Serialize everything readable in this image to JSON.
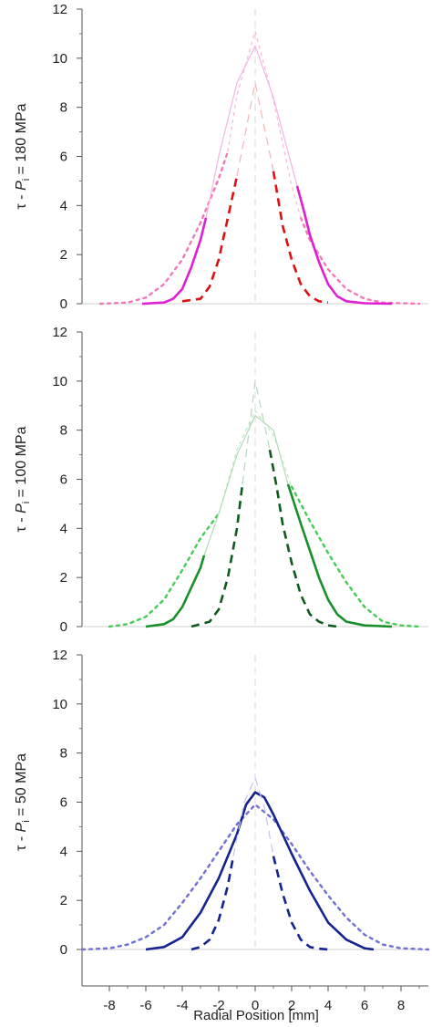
{
  "figure": {
    "xlabel": "Radial Position [mm]"
  },
  "chart_data": [
    {
      "type": "line",
      "title": "",
      "ylabel": "τ - Pᵢ = 180 MPa",
      "ylabel_parts": {
        "pre": "τ - ",
        "var": "P",
        "sub": "i",
        "post": " = 180 MPa"
      },
      "xlim": [
        -9.5,
        9.5
      ],
      "ylim": [
        0,
        12
      ],
      "yticks": [
        0,
        2,
        4,
        6,
        8,
        10,
        12
      ],
      "grid": false,
      "series": [
        {
          "style": "dotted",
          "color": "#f07ab8",
          "x": [
            -8.5,
            -7,
            -6,
            -5,
            -4,
            -3,
            -2,
            -1.5
          ],
          "y": [
            0,
            0.05,
            0.25,
            0.8,
            1.8,
            3.3,
            5.1,
            6.2
          ]
        },
        {
          "style": "dotted",
          "color": "#f07ab8",
          "x": [
            2.5,
            3,
            4,
            5,
            6,
            7,
            8,
            9
          ],
          "y": [
            3.5,
            2.6,
            1.4,
            0.6,
            0.2,
            0.05,
            0.02,
            0
          ]
        },
        {
          "style": "dotted",
          "color": "#f4b9d8",
          "x": [
            -1.5,
            -1,
            0,
            1,
            2,
            2.5
          ],
          "y": [
            6.2,
            8.5,
            11.1,
            8.3,
            4.8,
            3.5
          ]
        },
        {
          "style": "solid",
          "color": "#e020d0",
          "x": [
            -6.2,
            -5,
            -4.5,
            -4,
            -3.5,
            -3,
            -2.7
          ],
          "y": [
            0,
            0.05,
            0.2,
            0.6,
            1.5,
            2.6,
            3.5
          ]
        },
        {
          "style": "solid",
          "color": "#e020d0",
          "x": [
            2.3,
            2.7,
            3,
            3.5,
            4,
            4.5,
            5,
            6,
            7.5
          ],
          "y": [
            4.8,
            3.7,
            2.8,
            1.7,
            0.8,
            0.3,
            0.1,
            0.02,
            0
          ]
        },
        {
          "style": "solid",
          "color": "#f3b6e4",
          "x": [
            -2.7,
            -2,
            -1,
            0,
            1,
            2.3
          ],
          "y": [
            3.5,
            6,
            9,
            10.5,
            8.4,
            4.8
          ]
        },
        {
          "style": "dashed",
          "color": "#dd1111",
          "x": [
            -4,
            -3,
            -2.5,
            -2,
            -1.5,
            -1
          ],
          "y": [
            0.1,
            0.2,
            0.7,
            1.8,
            3.5,
            5.2
          ]
        },
        {
          "style": "dashed",
          "color": "#dd1111",
          "x": [
            1,
            1.5,
            2,
            2.5,
            3,
            3.5,
            4
          ],
          "y": [
            5.4,
            3.2,
            1.8,
            0.8,
            0.3,
            0.1,
            0.05
          ]
        },
        {
          "style": "dashed",
          "color": "#f2b8b8",
          "x": [
            -1,
            0,
            1
          ],
          "y": [
            5.2,
            9,
            5.4
          ]
        }
      ]
    },
    {
      "type": "line",
      "title": "",
      "ylabel": "τ - Pᵢ = 100 MPa",
      "ylabel_parts": {
        "pre": "τ - ",
        "var": "P",
        "sub": "i",
        "post": " = 100 MPa"
      },
      "xlim": [
        -9.5,
        9.5
      ],
      "ylim": [
        0,
        12
      ],
      "yticks": [
        0,
        2,
        4,
        6,
        8,
        10,
        12
      ],
      "grid": false,
      "series": [
        {
          "style": "dotted",
          "color": "#44cc55",
          "x": [
            -8,
            -7,
            -6,
            -5,
            -4,
            -3,
            -2
          ],
          "y": [
            0,
            0.1,
            0.4,
            1.1,
            2.3,
            3.6,
            4.6
          ]
        },
        {
          "style": "dotted",
          "color": "#44cc55",
          "x": [
            2,
            2.5,
            3,
            4,
            5,
            6,
            7,
            8,
            9
          ],
          "y": [
            5.7,
            5,
            4.3,
            3,
            1.8,
            0.8,
            0.2,
            0.05,
            0
          ]
        },
        {
          "style": "dotted",
          "color": "#b9e8c0",
          "x": [
            -2,
            -1,
            0,
            1,
            2
          ],
          "y": [
            4.6,
            7.2,
            8.8,
            7.8,
            5.7
          ]
        },
        {
          "style": "solid",
          "color": "#17902a",
          "x": [
            -6,
            -5,
            -4.5,
            -4,
            -3.5,
            -3,
            -2.8
          ],
          "y": [
            0,
            0.1,
            0.3,
            0.8,
            1.6,
            2.4,
            2.9
          ]
        },
        {
          "style": "solid",
          "color": "#17902a",
          "x": [
            1.8,
            2.5,
            3,
            3.5,
            4,
            4.5,
            5,
            6,
            7.5
          ],
          "y": [
            5.8,
            4.2,
            3.1,
            2,
            1.1,
            0.5,
            0.2,
            0.05,
            0
          ]
        },
        {
          "style": "solid",
          "color": "#b3dcb9",
          "x": [
            -2.8,
            -2,
            -1,
            0,
            1,
            1.8
          ],
          "y": [
            2.9,
            4.6,
            7,
            8.6,
            8,
            5.8
          ]
        },
        {
          "style": "dashed",
          "color": "#0f5a1e",
          "x": [
            -3.5,
            -2.5,
            -2,
            -1.5,
            -1,
            -0.7
          ],
          "y": [
            0,
            0.2,
            0.7,
            2,
            4,
            5.8
          ]
        },
        {
          "style": "dashed",
          "color": "#0f5a1e",
          "x": [
            0.8,
            1.2,
            1.5,
            2,
            2.5,
            3,
            3.5,
            4,
            4.5
          ],
          "y": [
            7.2,
            5.6,
            4.2,
            2.6,
            1.3,
            0.5,
            0.2,
            0.05,
            0
          ]
        },
        {
          "style": "dashed",
          "color": "#b7d6bd",
          "x": [
            -0.7,
            0,
            0.8
          ],
          "y": [
            5.8,
            10,
            7.2
          ]
        }
      ]
    },
    {
      "type": "line",
      "title": "",
      "ylabel": "τ - Pᵢ = 50 MPa",
      "ylabel_parts": {
        "pre": "τ - ",
        "var": "P",
        "sub": "i",
        "post": " = 50 MPa"
      },
      "xlim": [
        -9.5,
        9.5
      ],
      "ylim": [
        0,
        12
      ],
      "yticks": [
        0,
        2,
        4,
        6,
        8,
        10,
        12
      ],
      "xticks": [
        -8,
        -6,
        -4,
        -2,
        0,
        2,
        4,
        6,
        8
      ],
      "grid": false,
      "series": [
        {
          "style": "dotted",
          "color": "#6f6fd6",
          "x": [
            -9.5,
            -8,
            -7,
            -6,
            -5,
            -4,
            -3,
            -2,
            -1,
            0,
            1,
            2,
            3,
            4,
            5,
            6,
            7,
            8,
            9.5
          ],
          "y": [
            0,
            0.05,
            0.2,
            0.5,
            1,
            1.9,
            2.9,
            4,
            5.1,
            5.9,
            5.3,
            4.3,
            3.2,
            2.2,
            1.3,
            0.6,
            0.2,
            0.05,
            0
          ]
        },
        {
          "style": "solid",
          "color": "#14238f",
          "x": [
            -6,
            -5,
            -4,
            -3,
            -2,
            -1,
            -0.5,
            0,
            0.5,
            1,
            2,
            3,
            4,
            5,
            6,
            6.5
          ],
          "y": [
            0,
            0.1,
            0.5,
            1.5,
            2.9,
            4.7,
            5.9,
            6.4,
            6.2,
            5.5,
            3.9,
            2.4,
            1.1,
            0.4,
            0.05,
            0
          ]
        },
        {
          "style": "dashed",
          "color": "#14238f",
          "x": [
            -3.5,
            -3,
            -2.5,
            -2,
            -1.5,
            -1.2
          ],
          "y": [
            0,
            0.1,
            0.4,
            1.2,
            2.6,
            3.8
          ]
        },
        {
          "style": "dashed",
          "color": "#14238f",
          "x": [
            1,
            1.5,
            2,
            2.5,
            3,
            3.5,
            4
          ],
          "y": [
            3.8,
            2.3,
            1.1,
            0.4,
            0.1,
            0.03,
            0
          ]
        },
        {
          "style": "dashed",
          "color": "#c3c6e6",
          "x": [
            -1.2,
            -0.6,
            0,
            0.5,
            1
          ],
          "y": [
            3.8,
            6,
            7,
            5.8,
            3.8
          ]
        }
      ]
    }
  ]
}
